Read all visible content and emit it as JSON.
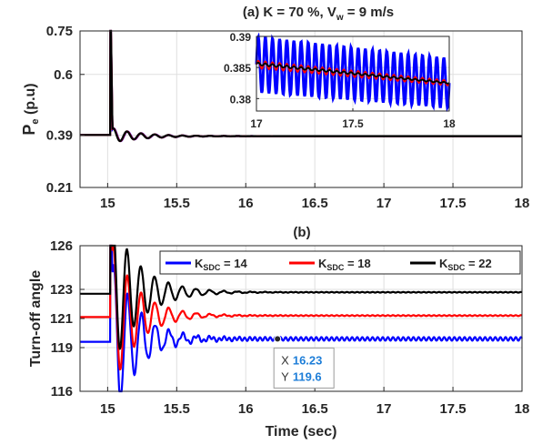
{
  "chart_data": [
    {
      "id": "a",
      "type": "line",
      "title": "(a) K = 70 %, V",
      "title_sub": "w",
      "title_tail": " = 9 m/s",
      "ylabel": "P",
      "ylabel_sub": "e",
      "ylabel_tail": " (p.u)",
      "xlim": [
        14.8,
        18
      ],
      "ylim": [
        0.21,
        0.75
      ],
      "xticks": [
        15,
        15.5,
        16,
        16.5,
        17,
        17.5,
        18
      ],
      "xtick_labels": [
        "15",
        "15.5",
        "16",
        "16.5",
        "17",
        "17.5",
        "18"
      ],
      "yticks": [
        0.21,
        0.39,
        0.6,
        0.75
      ],
      "ytick_labels": [
        "0.21",
        "0.39",
        "0.6",
        "0.75"
      ],
      "grid": true,
      "series": [
        {
          "color": "#0000ff",
          "steady": 0.387,
          "pre": 0.391,
          "overshoot": 0.36,
          "decay": 4.5,
          "ripple": 0.0
        },
        {
          "color": "#ff0000",
          "steady": 0.387,
          "pre": 0.391,
          "overshoot": 0.36,
          "decay": 4.6,
          "ripple": 0.0
        },
        {
          "color": "#000000",
          "steady": 0.387,
          "pre": 0.391,
          "overshoot": 0.36,
          "decay": 4.7,
          "ripple": 0.0
        }
      ],
      "inset": {
        "xlim": [
          17,
          18
        ],
        "ylim": [
          0.378,
          0.39
        ],
        "xticks": [
          17,
          17.5,
          18
        ],
        "xtick_labels": [
          "17",
          "17.5",
          "18"
        ],
        "yticks": [
          0.38,
          0.385,
          0.39
        ],
        "ytick_labels": [
          "0.38",
          "0.385",
          "0.39"
        ],
        "series": [
          {
            "color": "#0000ff",
            "start": 0.3855,
            "end": 0.3825,
            "amp_start": 0.0045,
            "amp_end": 0.004,
            "cycles": 27
          },
          {
            "color": "#ff0000",
            "start": 0.3855,
            "end": 0.3825,
            "amp_start": 0.0006,
            "amp_end": 0.0004,
            "cycles": 27
          },
          {
            "color": "#000000",
            "start": 0.3856,
            "end": 0.3825,
            "amp_start": 0.0002,
            "amp_end": 0.0001,
            "cycles": 27
          }
        ]
      }
    },
    {
      "id": "b",
      "type": "line",
      "title": "(b)",
      "ylabel": "Turn-off angle",
      "xlabel": "Time (sec)",
      "xlim": [
        14.8,
        18
      ],
      "ylim": [
        116,
        126
      ],
      "xticks": [
        15,
        15.5,
        16,
        16.5,
        17,
        17.5,
        18
      ],
      "xtick_labels": [
        "15",
        "15.5",
        "16",
        "16.5",
        "17",
        "17.5",
        "18"
      ],
      "yticks": [
        116,
        119,
        121,
        123,
        126
      ],
      "ytick_labels": [
        "116",
        "119",
        "121",
        "123",
        "126"
      ],
      "grid": true,
      "legend_position": "top-right",
      "series": [
        {
          "name_main": "K",
          "name_sub": "SDC",
          "name_tail": " = 14",
          "color": "#0000ff",
          "steady": 119.6,
          "pre": 119.4,
          "overshoot": 4.5,
          "decay": 5.5,
          "ripple": 0.12
        },
        {
          "name_main": "K",
          "name_sub": "SDC",
          "name_tail": " = 18",
          "color": "#ff0000",
          "steady": 121.2,
          "pre": 121.1,
          "overshoot": 4.0,
          "decay": 5.5,
          "ripple": 0.03
        },
        {
          "name_main": "K",
          "name_sub": "SDC",
          "name_tail": " = 22",
          "color": "#000000",
          "steady": 122.8,
          "pre": 122.7,
          "overshoot": 4.0,
          "decay": 5.0,
          "ripple": 0.02
        }
      ],
      "datatip": {
        "x_label": "X",
        "x_value": "16.23",
        "y_label": "Y",
        "y_value": "119.6",
        "x": 16.23,
        "y": 119.6
      }
    }
  ]
}
